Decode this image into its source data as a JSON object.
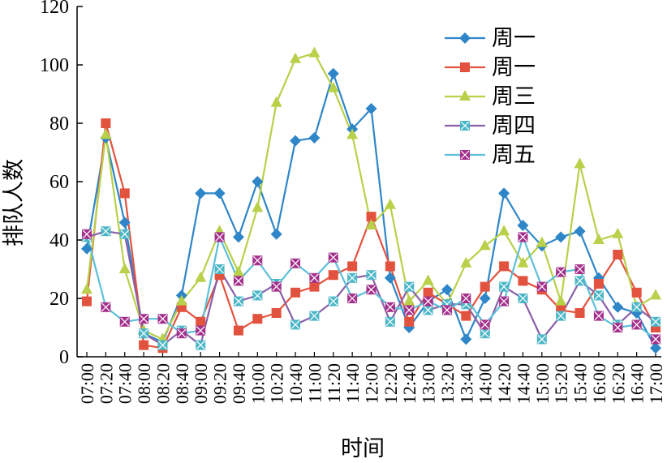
{
  "chart_data": {
    "type": "line",
    "xlabel": "时间",
    "ylabel": "排队人数",
    "categories": [
      "07:00",
      "07:20",
      "07:40",
      "08:00",
      "08:20",
      "08:40",
      "09:00",
      "09:20",
      "09:40",
      "10:00",
      "10:20",
      "10:40",
      "11:00",
      "11:20",
      "11:40",
      "12:00",
      "12:20",
      "12:40",
      "13:00",
      "13:20",
      "13:40",
      "14:00",
      "14:20",
      "14:40",
      "15:00",
      "15:20",
      "15:40",
      "16:00",
      "16:20",
      "16:40",
      "17:00"
    ],
    "series": [
      {
        "name": "周一",
        "color": "#2e86c8",
        "marker": "diamond",
        "marker_color": "#2e86c8",
        "values": [
          37,
          75,
          46,
          8,
          5,
          21,
          56,
          56,
          41,
          60,
          42,
          74,
          75,
          97,
          78,
          85,
          27,
          10,
          19,
          23,
          6,
          20,
          56,
          45,
          38,
          41,
          43,
          27,
          17,
          15,
          3
        ]
      },
      {
        "name": "周一",
        "color": "#e2533f",
        "marker": "square",
        "marker_color": "#e2533f",
        "values": [
          19,
          80,
          56,
          4,
          3,
          17,
          12,
          28,
          9,
          13,
          15,
          22,
          24,
          28,
          31,
          48,
          31,
          12,
          22,
          18,
          14,
          24,
          31,
          26,
          23,
          16,
          15,
          25,
          35,
          22,
          10
        ]
      },
      {
        "name": "周三",
        "color": "#b9d04a",
        "marker": "triangle",
        "marker_color": "#b9d04a",
        "values": [
          23,
          76,
          30,
          9,
          6,
          19,
          27,
          43,
          29,
          51,
          87,
          102,
          104,
          92,
          76,
          45,
          52,
          19,
          26,
          18,
          32,
          38,
          43,
          32,
          39,
          19,
          66,
          40,
          42,
          17,
          21
        ]
      },
      {
        "name": "周四",
        "color": "#8a60a8",
        "marker": "xsquare",
        "marker_color": "#4bb6c6",
        "values": [
          41,
          43,
          42,
          8,
          4,
          9,
          4,
          30,
          19,
          21,
          25,
          11,
          14,
          19,
          27,
          28,
          12,
          24,
          16,
          18,
          18,
          8,
          24,
          20,
          6,
          14,
          26,
          21,
          11,
          17,
          12
        ]
      },
      {
        "name": "周五",
        "color": "#5cc0d8",
        "marker": "xsquare",
        "marker_color": "#a4308c",
        "values": [
          42,
          17,
          12,
          13,
          13,
          8,
          9,
          41,
          26,
          33,
          24,
          32,
          27,
          34,
          20,
          23,
          17,
          16,
          19,
          16,
          20,
          11,
          19,
          41,
          24,
          29,
          30,
          14,
          10,
          11,
          6
        ]
      }
    ],
    "ylim": [
      0,
      120
    ],
    "yticks": [
      0,
      20,
      40,
      60,
      80,
      100,
      120
    ],
    "grid": false,
    "legend": "upper right"
  }
}
